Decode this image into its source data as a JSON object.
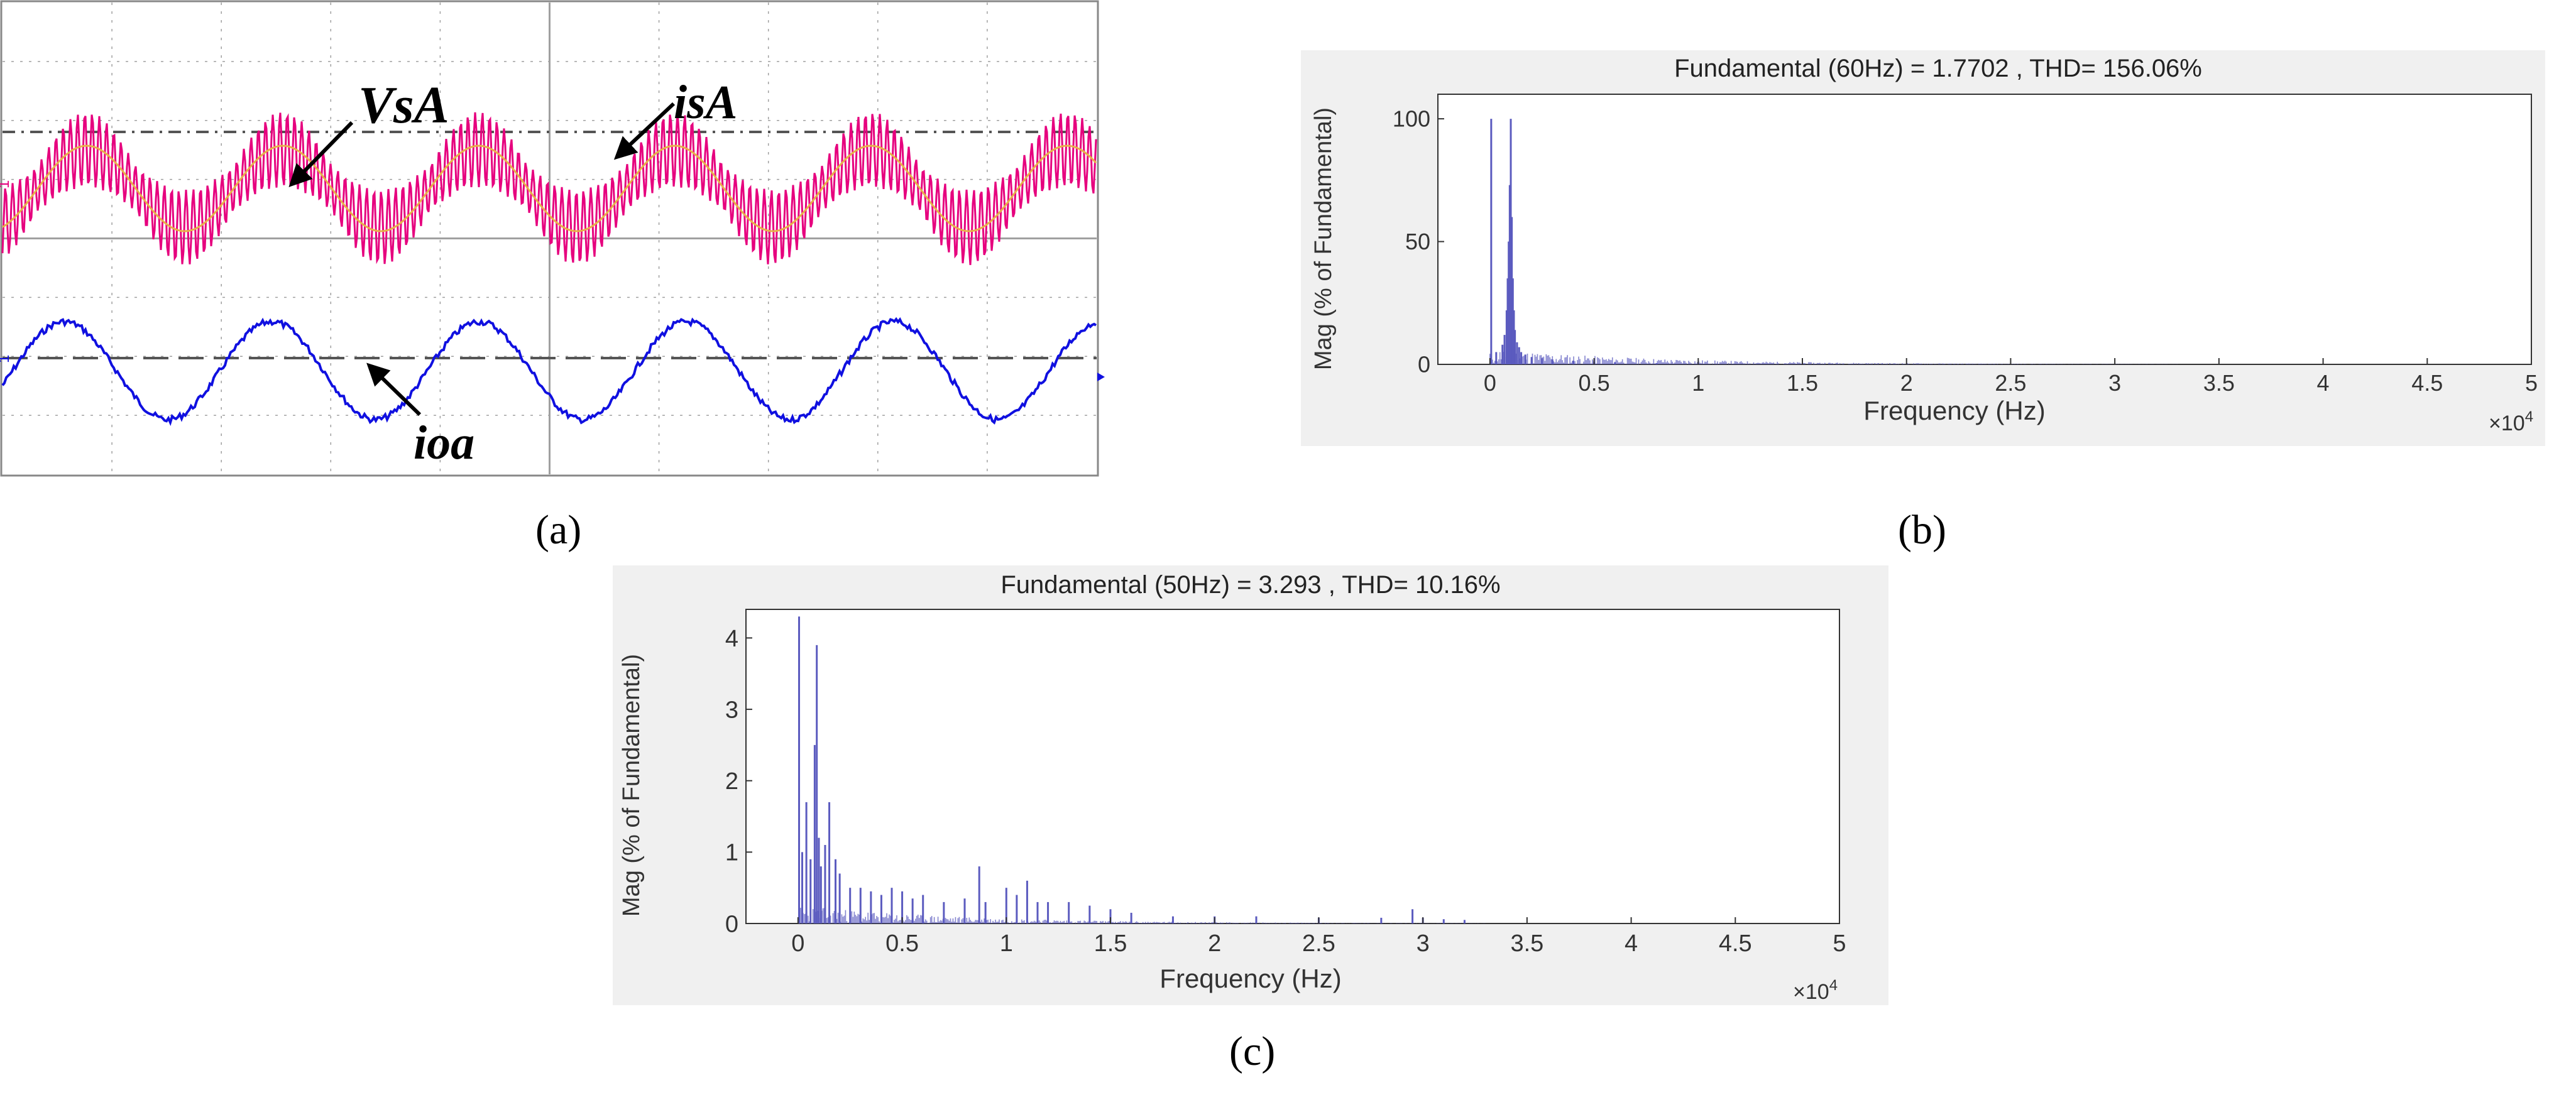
{
  "panels": [
    {
      "caption": "(a)",
      "channel_markers": {
        "ch1": "1",
        "ch2": "1"
      },
      "colors": {
        "voltage": "#e8b04a",
        "current": "#e6007e",
        "output": "#1010e0",
        "grid": "#a0a0a0",
        "screen_bg": "#ffffff"
      },
      "annotations": [
        {
          "label": "VsA"
        },
        {
          "label": "isA"
        },
        {
          "label": "ioa"
        }
      ]
    },
    {
      "caption": "(b)",
      "chart_title": "Fundamental (60Hz) = 1.7702 , THD= 156.06%",
      "chart_data": {
        "type": "bar",
        "xlabel": "Frequency (Hz)",
        "ylabel": "Mag (% of Fundamental)",
        "x_multiplier": "×10",
        "x_multiplier_exp": "4",
        "xlim": [
          -0.25,
          5
        ],
        "ylim": [
          0,
          110
        ],
        "xticks": [
          0,
          0.5,
          1,
          1.5,
          2,
          2.5,
          3,
          3.5,
          4,
          4.5,
          5
        ],
        "yticks": [
          0,
          50,
          100
        ],
        "x": [
          0.006,
          0.03,
          0.06,
          0.07,
          0.08,
          0.085,
          0.09,
          0.095,
          0.1,
          0.105,
          0.11,
          0.115,
          0.12,
          0.13,
          0.14,
          0.15,
          0.17,
          0.2,
          0.25,
          0.3,
          0.4,
          0.5,
          0.6,
          0.8,
          1.0
        ],
        "values": [
          100,
          5,
          8,
          12,
          22,
          35,
          50,
          73,
          100,
          60,
          35,
          22,
          14,
          9,
          7,
          5,
          4,
          3,
          2.5,
          2,
          1.5,
          1,
          0.8,
          0.5,
          0.3
        ],
        "color": "#5b5bbf"
      }
    },
    {
      "caption": "(c)",
      "chart_title": "Fundamental (50Hz) = 3.293 , THD= 10.16%",
      "chart_data": {
        "type": "bar",
        "xlabel": "Frequency (Hz)",
        "ylabel": "Mag (% of Fundamental)",
        "x_multiplier": "×10",
        "x_multiplier_exp": "4",
        "xlim": [
          -0.25,
          5
        ],
        "ylim": [
          0,
          4.4
        ],
        "xticks": [
          0,
          0.5,
          1,
          1.5,
          2,
          2.5,
          3,
          3.5,
          4,
          4.5,
          5
        ],
        "yticks": [
          0,
          1,
          2,
          3,
          4
        ],
        "x": [
          0.005,
          0.02,
          0.04,
          0.06,
          0.08,
          0.09,
          0.1,
          0.11,
          0.13,
          0.15,
          0.18,
          0.2,
          0.25,
          0.3,
          0.35,
          0.4,
          0.45,
          0.5,
          0.55,
          0.6,
          0.7,
          0.8,
          0.87,
          0.9,
          1.0,
          1.05,
          1.1,
          1.15,
          1.2,
          1.3,
          1.4,
          1.5,
          1.6,
          1.8,
          2.0,
          2.2,
          2.5,
          2.8,
          2.95,
          3.0,
          3.1,
          3.2
        ],
        "values": [
          4.3,
          1.0,
          1.7,
          0.9,
          2.5,
          3.9,
          1.2,
          0.8,
          1.1,
          1.7,
          0.9,
          0.7,
          0.5,
          0.5,
          0.45,
          0.4,
          0.5,
          0.45,
          0.35,
          0.4,
          0.3,
          0.35,
          0.8,
          0.3,
          0.5,
          0.4,
          0.6,
          0.3,
          0.3,
          0.3,
          0.25,
          0.2,
          0.15,
          0.1,
          0.1,
          0.1,
          0.08,
          0.08,
          0.2,
          0.08,
          0.06,
          0.05
        ],
        "color": "#5b5bbf"
      }
    }
  ]
}
